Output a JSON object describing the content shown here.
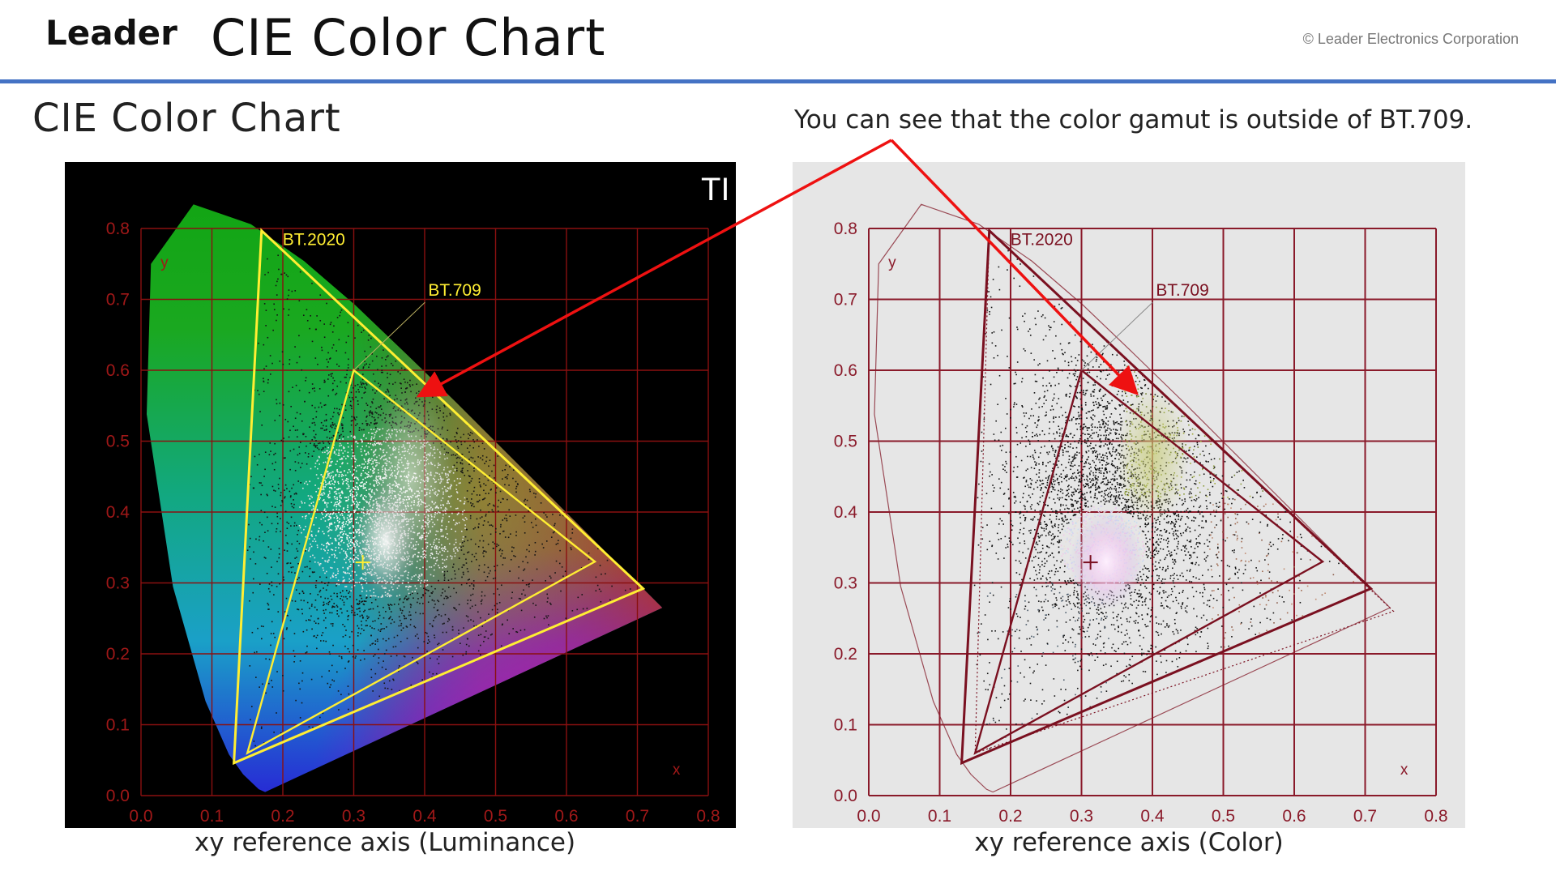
{
  "header": {
    "logo_text": "Leader",
    "title": "CIE Color Chart",
    "copyright": "© Leader Electronics Corporation",
    "accent_rule_color": "#4472c4"
  },
  "section_title": "CIE Color Chart",
  "annotation": "You can see that the color gamut is outside of BT.709.",
  "callout_color": "#ee1111",
  "panels": [
    {
      "id": "luminance",
      "caption": "xy reference axis (Luminance)",
      "background": "#000000",
      "grid_color": "#8a1010",
      "tick_color": "#a01818",
      "gamut_color": "#ffee33",
      "corner_text": "TI",
      "x_axis_label": "x",
      "y_axis_label": "y",
      "bt2020_label": "BT.2020",
      "bt709_label": "BT.709"
    },
    {
      "id": "color",
      "caption": "xy reference axis (Color)",
      "background": "#e6e6e6",
      "grid_color": "#8a1a2a",
      "tick_color": "#8a1a2a",
      "gamut_color": "#7a1020",
      "x_axis_label": "x",
      "y_axis_label": "y",
      "bt2020_label": "BT.2020",
      "bt709_label": "BT.709"
    }
  ],
  "chart_data": {
    "type": "scatter",
    "xlabel": "x",
    "ylabel": "y",
    "xlim": [
      0.0,
      0.8
    ],
    "ylim": [
      0.0,
      0.8
    ],
    "x_ticks": [
      "0.0",
      "0.1",
      "0.2",
      "0.3",
      "0.4",
      "0.5",
      "0.6",
      "0.7",
      "0.8"
    ],
    "y_ticks": [
      "0.0",
      "0.1",
      "0.2",
      "0.3",
      "0.4",
      "0.5",
      "0.6",
      "0.7",
      "0.8"
    ],
    "grid": true,
    "gamuts": [
      {
        "name": "BT.2020",
        "points": [
          [
            0.708,
            0.292
          ],
          [
            0.17,
            0.797
          ],
          [
            0.131,
            0.046
          ]
        ]
      },
      {
        "name": "BT.709",
        "points": [
          [
            0.64,
            0.33
          ],
          [
            0.3,
            0.6
          ],
          [
            0.15,
            0.06
          ]
        ]
      }
    ],
    "white_point": [
      0.3127,
      0.329
    ],
    "spectral_locus": [
      [
        0.175,
        0.005
      ],
      [
        0.166,
        0.009
      ],
      [
        0.144,
        0.03
      ],
      [
        0.124,
        0.058
      ],
      [
        0.091,
        0.133
      ],
      [
        0.045,
        0.295
      ],
      [
        0.008,
        0.538
      ],
      [
        0.014,
        0.75
      ],
      [
        0.074,
        0.834
      ],
      [
        0.155,
        0.806
      ],
      [
        0.23,
        0.754
      ],
      [
        0.302,
        0.692
      ],
      [
        0.373,
        0.624
      ],
      [
        0.444,
        0.555
      ],
      [
        0.512,
        0.487
      ],
      [
        0.575,
        0.424
      ],
      [
        0.627,
        0.372
      ],
      [
        0.665,
        0.334
      ],
      [
        0.692,
        0.308
      ],
      [
        0.735,
        0.265
      ]
    ]
  }
}
